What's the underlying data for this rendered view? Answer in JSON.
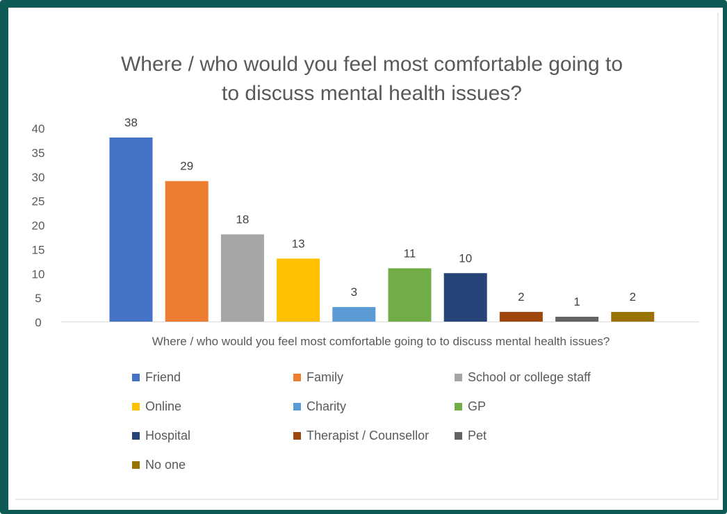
{
  "chart_data": {
    "type": "bar",
    "title_lines": [
      "Where / who would you feel most comfortable going to",
      "to discuss mental health issues?"
    ],
    "xlabel": "Where / who would you feel most comfortable going to to discuss mental health issues?",
    "ylabel": "",
    "ylim": [
      0,
      40
    ],
    "yticks": [
      "0",
      "5",
      "10",
      "15",
      "20",
      "25",
      "30",
      "35",
      "40"
    ],
    "grid": false,
    "legend_position": "bottom",
    "categories": [
      "Friend",
      "Family",
      "School or college staff",
      "Online",
      "Charity",
      "GP",
      "Hospital",
      "Therapist / Counsellor",
      "Pet",
      "No one"
    ],
    "values": [
      38,
      29,
      18,
      13,
      3,
      11,
      10,
      2,
      1,
      2
    ],
    "colors": [
      "#4472c4",
      "#ed7d31",
      "#a5a5a5",
      "#ffc000",
      "#5b9bd5",
      "#70ad47",
      "#264478",
      "#9e480e",
      "#636363",
      "#997300"
    ]
  }
}
